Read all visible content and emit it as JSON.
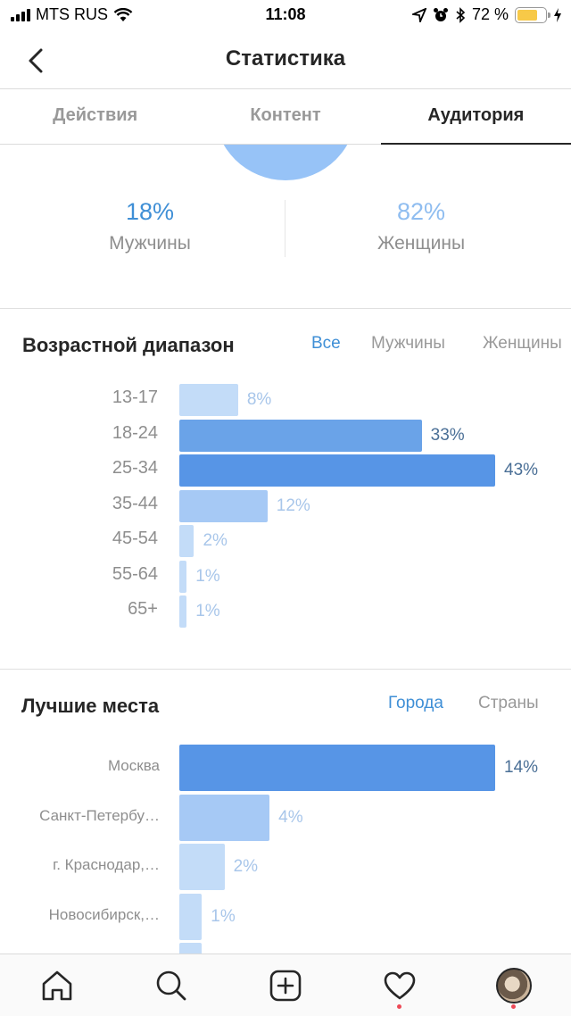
{
  "status_bar": {
    "carrier": "MTS RUS",
    "time": "11:08",
    "battery": "72 %",
    "battery_level": 0.72
  },
  "header": {
    "title": "Статистика"
  },
  "tabs": [
    {
      "label": "Действия",
      "active": false
    },
    {
      "label": "Контент",
      "active": false
    },
    {
      "label": "Аудитория",
      "active": true
    }
  ],
  "gender": {
    "men": {
      "pct": "18%",
      "label": "Мужчины",
      "color": "#3f8fd6"
    },
    "women": {
      "pct": "82%",
      "label": "Женщины",
      "color": "#8fbdf0"
    }
  },
  "age": {
    "title": "Возрастной диапазон",
    "filters": [
      {
        "label": "Все",
        "active": true
      },
      {
        "label": "Мужчины",
        "active": false
      },
      {
        "label": "Женщины",
        "active": false
      }
    ],
    "rows": [
      {
        "label": "13-17",
        "value": 8,
        "text": "8%"
      },
      {
        "label": "18-24",
        "value": 33,
        "text": "33%"
      },
      {
        "label": "25-34",
        "value": 43,
        "text": "43%"
      },
      {
        "label": "35-44",
        "value": 12,
        "text": "12%"
      },
      {
        "label": "45-54",
        "value": 2,
        "text": "2%"
      },
      {
        "label": "55-64",
        "value": 1,
        "text": "1%"
      },
      {
        "label": "65+",
        "value": 1,
        "text": "1%"
      }
    ]
  },
  "places": {
    "title": "Лучшие места",
    "filters": [
      {
        "label": "Города",
        "active": true
      },
      {
        "label": "Страны",
        "active": false
      }
    ],
    "rows": [
      {
        "label": "Москва",
        "value": 14,
        "text": "14%"
      },
      {
        "label": "Санкт-Петербу…",
        "value": 4,
        "text": "4%"
      },
      {
        "label": "г. Краснодар,…",
        "value": 2,
        "text": "2%"
      },
      {
        "label": "Новосибирск,…",
        "value": 1,
        "text": "1%"
      },
      {
        "label": "",
        "value": 1,
        "text": ""
      }
    ]
  },
  "bottom_nav": [
    {
      "icon": "home-icon"
    },
    {
      "icon": "search-icon"
    },
    {
      "icon": "add-post-icon"
    },
    {
      "icon": "heart-icon",
      "notification": true
    },
    {
      "icon": "profile-avatar",
      "notification": true
    }
  ],
  "colors": {
    "bar_max": "#5795e6",
    "bar_high": "#6aa3e8",
    "bar_mid": "#a6c9f5",
    "bar_low": "#c3dcf8",
    "value_dark": "#4a6f96",
    "value_light": "#a8c6ea",
    "accent": "#3f8fd6"
  }
}
